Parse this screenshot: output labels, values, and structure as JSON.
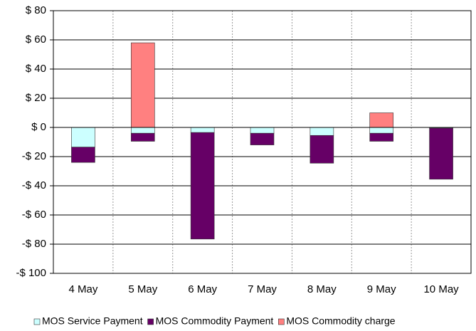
{
  "chart_data": {
    "type": "stacked-bar",
    "categories": [
      "4 May",
      "5 May",
      "6 May",
      "7 May",
      "8 May",
      "9 May",
      "10 May"
    ],
    "series": [
      {
        "name": "MOS Service Payment",
        "color": "#ccffff",
        "values": [
          -13.5,
          -4,
          -3.5,
          -4,
          -5.5,
          -4,
          -0.5
        ]
      },
      {
        "name": "MOS Commodity Payment",
        "color": "#660066",
        "values": [
          -10.5,
          -5.5,
          -73,
          -8,
          -19,
          -5.5,
          -35
        ]
      },
      {
        "name": "MOS Commodity charge",
        "color": "#ff8080",
        "values": [
          0,
          58,
          0,
          0,
          0,
          10,
          0
        ]
      }
    ],
    "ylim": [
      -100,
      80
    ],
    "yticks": [
      {
        "value": -100,
        "label": "-$ 100"
      },
      {
        "value": -80,
        "label": "-$ 80"
      },
      {
        "value": -60,
        "label": "-$ 60"
      },
      {
        "value": -40,
        "label": "-$ 40"
      },
      {
        "value": -20,
        "label": "-$ 20"
      },
      {
        "value": 0,
        "label": "$ 0"
      },
      {
        "value": 20,
        "label": "$ 20"
      },
      {
        "value": 40,
        "label": "$ 40"
      },
      {
        "value": 60,
        "label": "$ 60"
      },
      {
        "value": 80,
        "label": "$ 80"
      }
    ],
    "grid": true,
    "legend": "bottom"
  }
}
